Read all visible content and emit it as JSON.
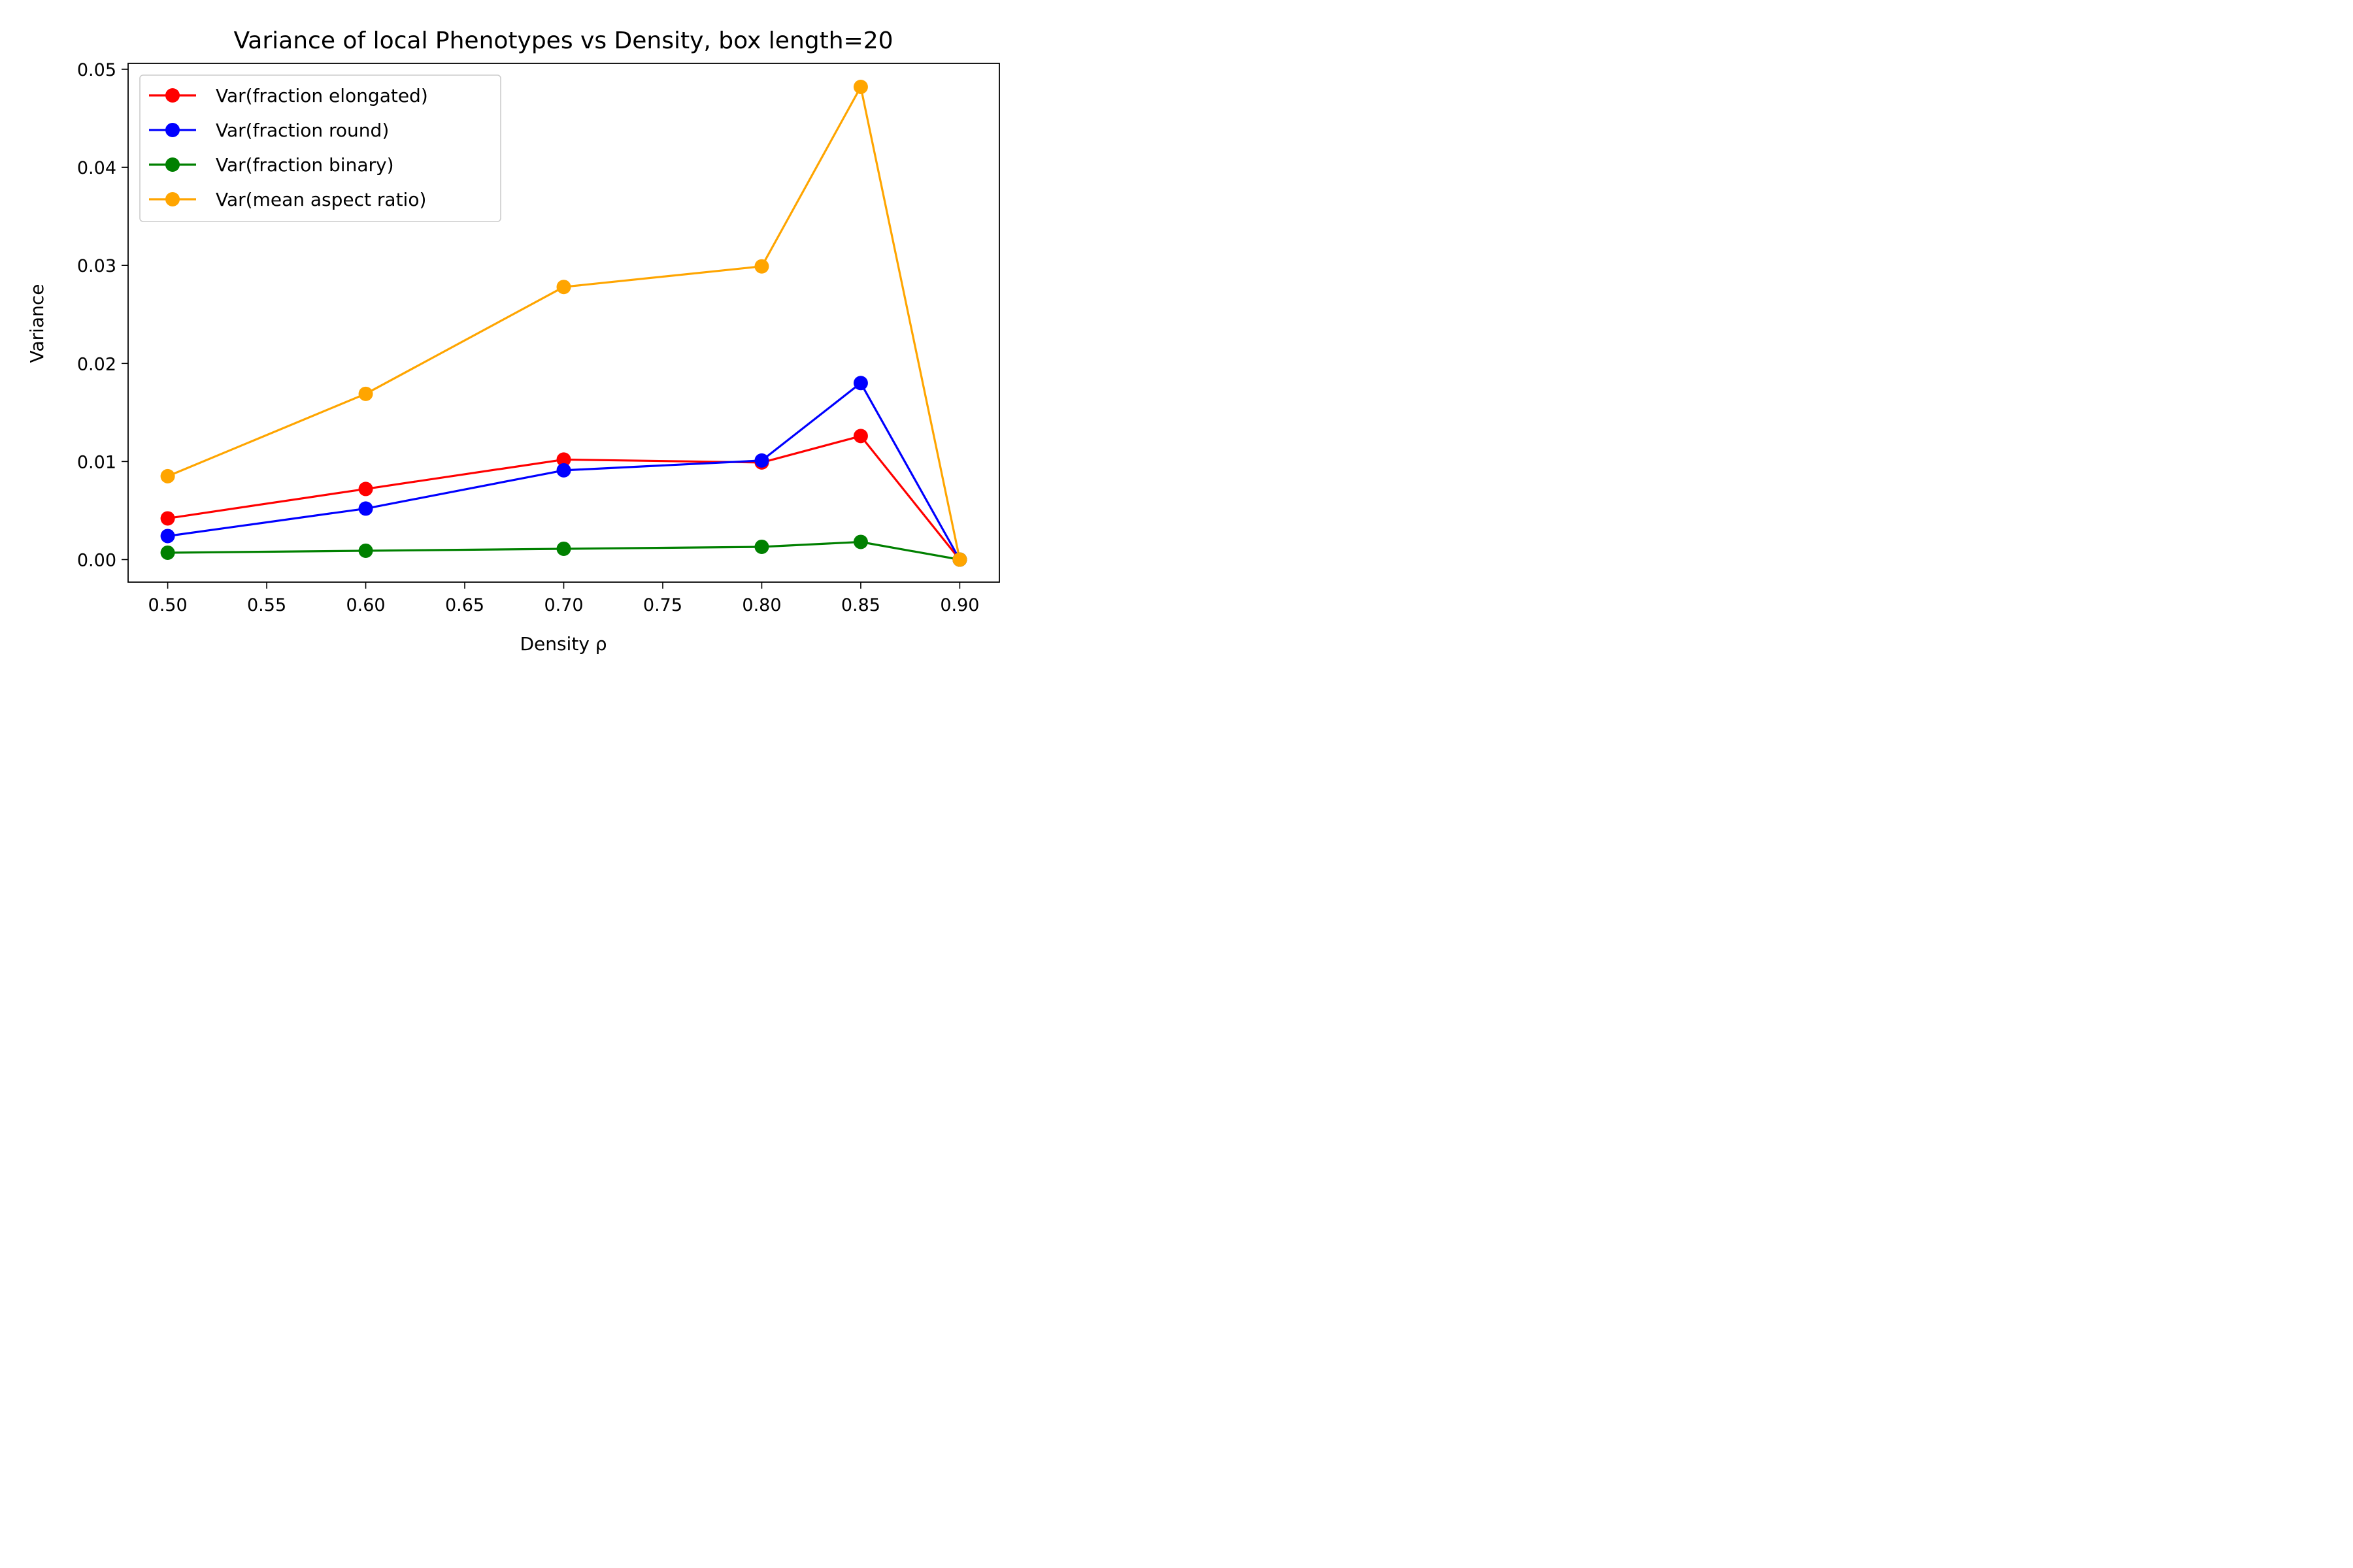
{
  "chart_data": {
    "type": "line",
    "title": "Variance of local Phenotypes vs Density, box length=20",
    "xlabel": "Density ρ",
    "ylabel": "Variance",
    "x": [
      0.5,
      0.6,
      0.7,
      0.8,
      0.85,
      0.9
    ],
    "xlim": [
      0.48,
      0.92
    ],
    "ylim": [
      -0.0023,
      0.0506
    ],
    "xticks": [
      0.5,
      0.55,
      0.6,
      0.65,
      0.7,
      0.75,
      0.8,
      0.85,
      0.9
    ],
    "xtick_labels": [
      "0.50",
      "0.55",
      "0.60",
      "0.65",
      "0.70",
      "0.75",
      "0.80",
      "0.85",
      "0.90"
    ],
    "yticks": [
      0.0,
      0.01,
      0.02,
      0.03,
      0.04,
      0.05
    ],
    "ytick_labels": [
      "0.00",
      "0.01",
      "0.02",
      "0.03",
      "0.04",
      "0.05"
    ],
    "grid": false,
    "legend_position": "top-left",
    "series": [
      {
        "name": "Var(fraction elongated)",
        "color": "#ff0000",
        "values": [
          0.0042,
          0.0072,
          0.0102,
          0.0099,
          0.0126,
          0.0
        ]
      },
      {
        "name": "Var(fraction round)",
        "color": "#0000ff",
        "values": [
          0.0024,
          0.0052,
          0.0091,
          0.0101,
          0.018,
          0.0
        ]
      },
      {
        "name": "Var(fraction binary)",
        "color": "#008000",
        "values": [
          0.0007,
          0.0009,
          0.0011,
          0.0013,
          0.0018,
          0.0
        ]
      },
      {
        "name": "Var(mean aspect ratio)",
        "color": "#ffa500",
        "values": [
          0.0085,
          0.0169,
          0.0278,
          0.0299,
          0.0482,
          0.0
        ]
      }
    ]
  }
}
